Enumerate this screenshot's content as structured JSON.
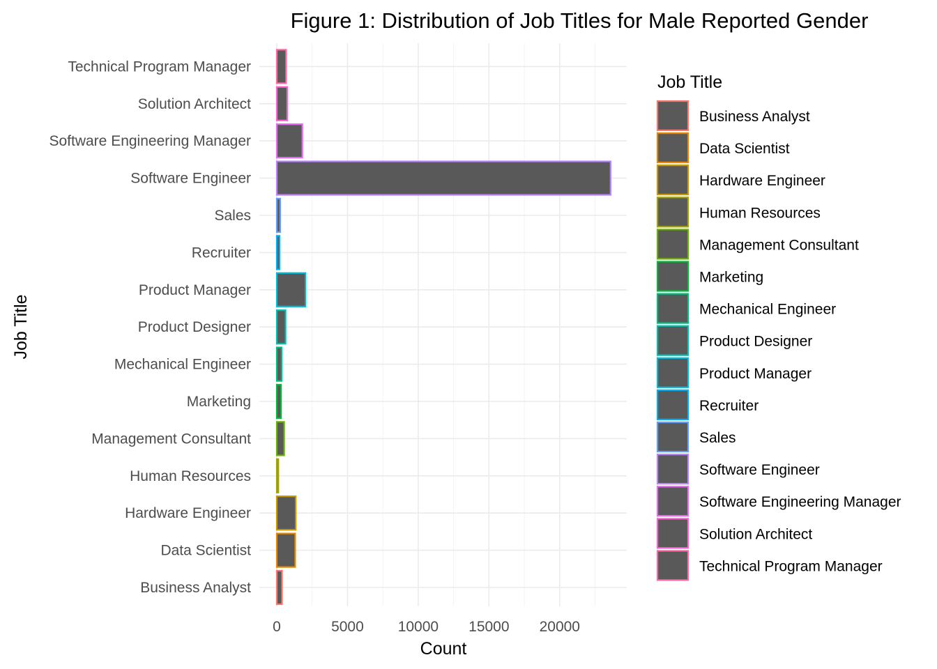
{
  "chart_data": {
    "type": "bar",
    "orientation": "horizontal",
    "title": "Figure 1: Distribution of Job Titles for Male Reported Gender",
    "xlabel": "Count",
    "ylabel": "Job Title",
    "xlim": [
      0,
      24800
    ],
    "x_ticks": [
      0,
      5000,
      10000,
      15000,
      20000
    ],
    "x_tick_labels": [
      "0",
      "5000",
      "10000",
      "15000",
      "20000"
    ],
    "grid": true,
    "legend_placement": "right",
    "legend_title": "Job Title",
    "bar_fill": "#595959",
    "categories": [
      "Business Analyst",
      "Data Scientist",
      "Hardware Engineer",
      "Human Resources",
      "Management Consultant",
      "Marketing",
      "Mechanical Engineer",
      "Product Designer",
      "Product Manager",
      "Recruiter",
      "Sales",
      "Software Engineer",
      "Software Engineering Manager",
      "Solution Architect",
      "Technical Program Manager"
    ],
    "values": [
      370,
      1300,
      1340,
      110,
      520,
      300,
      340,
      620,
      2030,
      200,
      240,
      23600,
      1810,
      740,
      660
    ],
    "colors": [
      "#F8766D",
      "#E58700",
      "#C99800",
      "#A3A500",
      "#6BB100",
      "#00BA38",
      "#00BF7D",
      "#00C0AF",
      "#00BCD8",
      "#00B0F6",
      "#619CFF",
      "#B983FF",
      "#E76BF3",
      "#FD61D1",
      "#FF67A4"
    ]
  }
}
